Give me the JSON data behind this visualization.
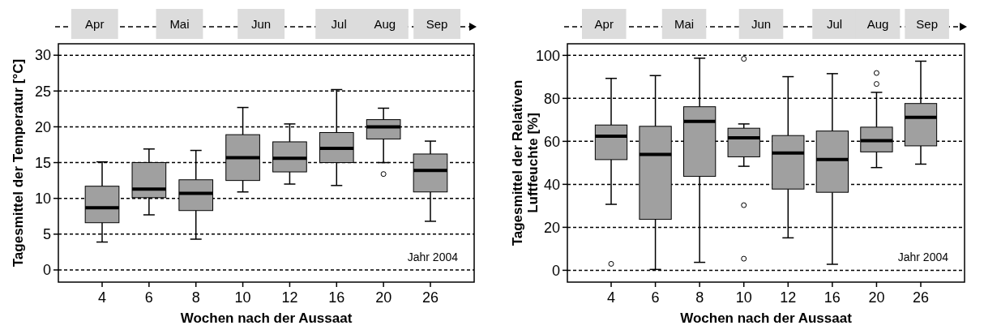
{
  "chart_data": [
    {
      "type": "box",
      "xlabel": "Wochen nach der Aussaat",
      "ylabel": "Tagesmittel der Temperatur [°C]",
      "categories": [
        "4",
        "6",
        "8",
        "10",
        "12",
        "16",
        "20",
        "26"
      ],
      "color": "#a0a0a0",
      "ylim": [
        -1.7,
        31.6
      ],
      "yticks": [
        0,
        5,
        10,
        15,
        20,
        25,
        30
      ],
      "grid": "y",
      "annotations": [
        "Jahr 2004",
        "Apr",
        "Mai",
        "Jun",
        "Jul",
        "Aug",
        "Sep"
      ],
      "boxes": [
        {
          "low": 3.9,
          "q1": 6.6,
          "median": 8.7,
          "q3": 11.7,
          "high": 15.1
        },
        {
          "low": 7.7,
          "q1": 10.1,
          "median": 11.3,
          "q3": 15.0,
          "high": 16.9
        },
        {
          "low": 4.3,
          "q1": 8.3,
          "median": 10.7,
          "q3": 12.6,
          "high": 16.7
        },
        {
          "low": 10.9,
          "q1": 12.5,
          "median": 15.7,
          "q3": 18.9,
          "high": 22.7
        },
        {
          "low": 12.0,
          "q1": 13.7,
          "median": 15.6,
          "q3": 17.9,
          "high": 20.4
        },
        {
          "low": 11.8,
          "q1": 15.0,
          "median": 17.0,
          "q3": 19.2,
          "high": 25.2
        },
        {
          "low": 15.0,
          "q1": 18.3,
          "median": 20.0,
          "q3": 21.0,
          "high": 22.6,
          "outliers": [
            13.4
          ]
        },
        {
          "low": 6.8,
          "q1": 10.9,
          "median": 13.9,
          "q3": 16.2,
          "high": 18.0
        }
      ]
    },
    {
      "type": "box",
      "xlabel": "Wochen nach der Aussaat",
      "ylabel": "Tagesmittel der Relativen\nLuftfeuchte [%]",
      "categories": [
        "4",
        "6",
        "8",
        "10",
        "12",
        "16",
        "20",
        "26"
      ],
      "color": "#a0a0a0",
      "ylim": [
        -5.5,
        105.4
      ],
      "yticks": [
        0,
        20,
        40,
        60,
        80,
        100
      ],
      "grid": "y",
      "annotations": [
        "Jahr 2004",
        "Apr",
        "Mai",
        "Jun",
        "Jul",
        "Aug",
        "Sep"
      ],
      "boxes": [
        {
          "low": 30.7,
          "q1": 51.5,
          "median": 62.4,
          "q3": 67.6,
          "high": 89.3,
          "outliers": [
            3
          ]
        },
        {
          "low": 0.4,
          "q1": 23.7,
          "median": 53.9,
          "q3": 67.0,
          "high": 90.6
        },
        {
          "low": 3.7,
          "q1": 43.7,
          "median": 69.3,
          "q3": 76.1,
          "high": 98.7
        },
        {
          "low": 48.4,
          "q1": 52.8,
          "median": 61.6,
          "q3": 66.1,
          "high": 68.1,
          "outliers": [
            98.4,
            30.3,
            5.4
          ]
        },
        {
          "low": 15.1,
          "q1": 37.8,
          "median": 54.6,
          "q3": 62.7,
          "high": 90.1
        },
        {
          "low": 2.8,
          "q1": 36.3,
          "median": 51.6,
          "q3": 64.8,
          "high": 91.5
        },
        {
          "low": 47.8,
          "q1": 55.1,
          "median": 60.3,
          "q3": 66.6,
          "high": 82.8,
          "outliers": [
            86.7,
            91.8
          ]
        },
        {
          "low": 49.4,
          "q1": 57.9,
          "median": 71.2,
          "q3": 77.6,
          "high": 97.3
        }
      ]
    }
  ]
}
